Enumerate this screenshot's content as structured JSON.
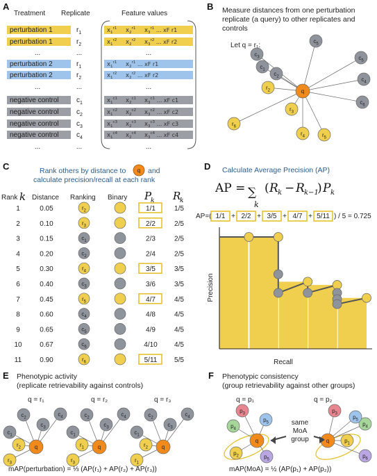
{
  "panelA": {
    "letter": "A",
    "headers": {
      "treatment": "Treatment",
      "replicate": "Replicate",
      "features": "Feature values"
    },
    "rows": [
      {
        "treatment": "perturbation 1",
        "rep_base": "r",
        "rep_sub": "1",
        "color": "#f0cf4f",
        "feat": "x1 r1  x2 r1  x3 r1 ... xF r1"
      },
      {
        "treatment": "perturbation 1",
        "rep_base": "r",
        "rep_sub": "2",
        "color": "#f0cf4f",
        "feat": "x1 r2  x2 r2  x3 r2 ... xF r2"
      },
      {
        "treatment": "...",
        "rep_base": "...",
        "rep_sub": "",
        "color": "#f0cf4f",
        "feat": "..."
      },
      {
        "treatment": "perturbation 2",
        "rep_base": "r",
        "rep_sub": "1",
        "color": "#9ec4ec",
        "feat": "x1 r1  x2 r1 ... xF r1"
      },
      {
        "treatment": "perturbation 2",
        "rep_base": "r",
        "rep_sub": "2",
        "color": "#9ec4ec",
        "feat": "x1 r2  x2 r2 ... xF r2"
      },
      {
        "treatment": "...",
        "rep_base": "...",
        "rep_sub": "",
        "color": "#9ec4ec",
        "feat": "..."
      },
      {
        "treatment": "negative control",
        "rep_base": "c",
        "rep_sub": "1",
        "color": "#9b9ea5",
        "feat": "x1 c1  x2 c1  x3 c1 ... xF c1"
      },
      {
        "treatment": "negative control",
        "rep_base": "c",
        "rep_sub": "2",
        "color": "#9b9ea5",
        "feat": "x1 c2  x2 c2  x3 c2 ... xF c2"
      },
      {
        "treatment": "negative control",
        "rep_base": "c",
        "rep_sub": "3",
        "color": "#9b9ea5",
        "feat": "x1 c3  x2 c3  x3 c3 ... xF c3"
      },
      {
        "treatment": "negative control",
        "rep_base": "c",
        "rep_sub": "4",
        "color": "#9b9ea5",
        "feat": "x1 c4  x2 c4  x3 c4 ... xF c4"
      },
      {
        "treatment": "...",
        "rep_base": "...",
        "rep_sub": "",
        "color": "#9b9ea5",
        "feat": "..."
      }
    ]
  },
  "panelB": {
    "letter": "B",
    "title_lines": [
      "Measure distances from one perturbation",
      "replicate (a query) to other replicates and",
      "controls"
    ],
    "let": "Let  q = r₁:",
    "query": "q"
  },
  "panelC": {
    "letter": "C",
    "title_line1a": "Rank others by distance to",
    "title_line1b": "and",
    "title_line2": "calculate precision/recall at each rank",
    "headers": {
      "rank": "Rank",
      "k": "k",
      "distance": "Distance",
      "ranking": "Ranking",
      "binary": "Binary",
      "pk": "P",
      "rk": "R"
    },
    "rows": [
      {
        "rank": "1",
        "distance": "0.05",
        "ranking": "r2",
        "binary": 1,
        "pk": "1/1",
        "rk": "1/5"
      },
      {
        "rank": "2",
        "distance": "0.10",
        "ranking": "r3",
        "binary": 1,
        "pk": "2/2",
        "rk": "2/5"
      },
      {
        "rank": "3",
        "distance": "0.15",
        "ranking": "c1",
        "binary": 0,
        "pk": "2/3",
        "rk": "2/5"
      },
      {
        "rank": "4",
        "distance": "0.20",
        "ranking": "c2",
        "binary": 0,
        "pk": "2/4",
        "rk": "2/5"
      },
      {
        "rank": "5",
        "distance": "0.30",
        "ranking": "r4",
        "binary": 1,
        "pk": "3/5",
        "rk": "3/5"
      },
      {
        "rank": "6",
        "distance": "0.40",
        "ranking": "c3",
        "binary": 0,
        "pk": "3/6",
        "rk": "3/5"
      },
      {
        "rank": "7",
        "distance": "0.45",
        "ranking": "r5",
        "binary": 1,
        "pk": "4/7",
        "rk": "4/5"
      },
      {
        "rank": "8",
        "distance": "0.60",
        "ranking": "c4",
        "binary": 0,
        "pk": "4/8",
        "rk": "4/5"
      },
      {
        "rank": "9",
        "distance": "0.65",
        "ranking": "c5",
        "binary": 0,
        "pk": "4/9",
        "rk": "4/5"
      },
      {
        "rank": "10",
        "distance": "0.67",
        "ranking": "c6",
        "binary": 0,
        "pk": "4/10",
        "rk": "4/5"
      },
      {
        "rank": "11",
        "distance": "0.90",
        "ranking": "r6",
        "binary": 1,
        "pk": "5/11",
        "rk": "5/5"
      }
    ]
  },
  "panelD": {
    "letter": "D",
    "title": "Calculate Average Precision (AP)",
    "ap_prefix": "AP=(",
    "ap_terms": [
      "1/1",
      "2/2",
      "3/5",
      "4/7",
      "5/11"
    ],
    "ap_suffix": ") / 5 = 0.725",
    "xlabel": "Recall",
    "ylabel": "Precision"
  },
  "chart_data": {
    "type": "area",
    "title": "",
    "xlabel": "Recall",
    "ylabel": "Precision",
    "x": [
      0.2,
      0.4,
      0.4,
      0.4,
      0.6,
      0.6,
      0.8,
      0.8,
      0.8,
      0.8,
      1.0
    ],
    "series": [
      {
        "values": [
          1.0,
          1.0,
          0.667,
          0.5,
          0.6,
          0.5,
          0.571,
          0.5,
          0.444,
          0.4,
          0.455
        ]
      }
    ],
    "xlim": [
      0,
      1
    ],
    "ylim": [
      0,
      1
    ]
  },
  "panelE": {
    "letter": "E",
    "title_line1": "Phenotypic activity",
    "title_line2": "(replicate retrievability against controls)",
    "queries": [
      "q = r₁",
      "q = r₂",
      "q = r₃"
    ],
    "formula": "mAP(perturbation) = ⅓ (AP(r₁) + AP(r₂) + AP(r₃))"
  },
  "panelF": {
    "letter": "F",
    "title_line1": "Phenotypic consistency",
    "title_line2": "(group retrievability against other groups)",
    "queries": [
      "q = p₁",
      "q = p₂"
    ],
    "same_label": [
      "same",
      "MoA",
      "group"
    ],
    "formula": "mAP(MoA) = ½ (AP(p₁) + AP(p₂))"
  },
  "colors": {
    "yellow": "#f0cf4f",
    "orange": "#f08a1c",
    "gray": "#8f939b",
    "blue": "#9ec4ec",
    "title_blue": "#2a5d8f"
  }
}
